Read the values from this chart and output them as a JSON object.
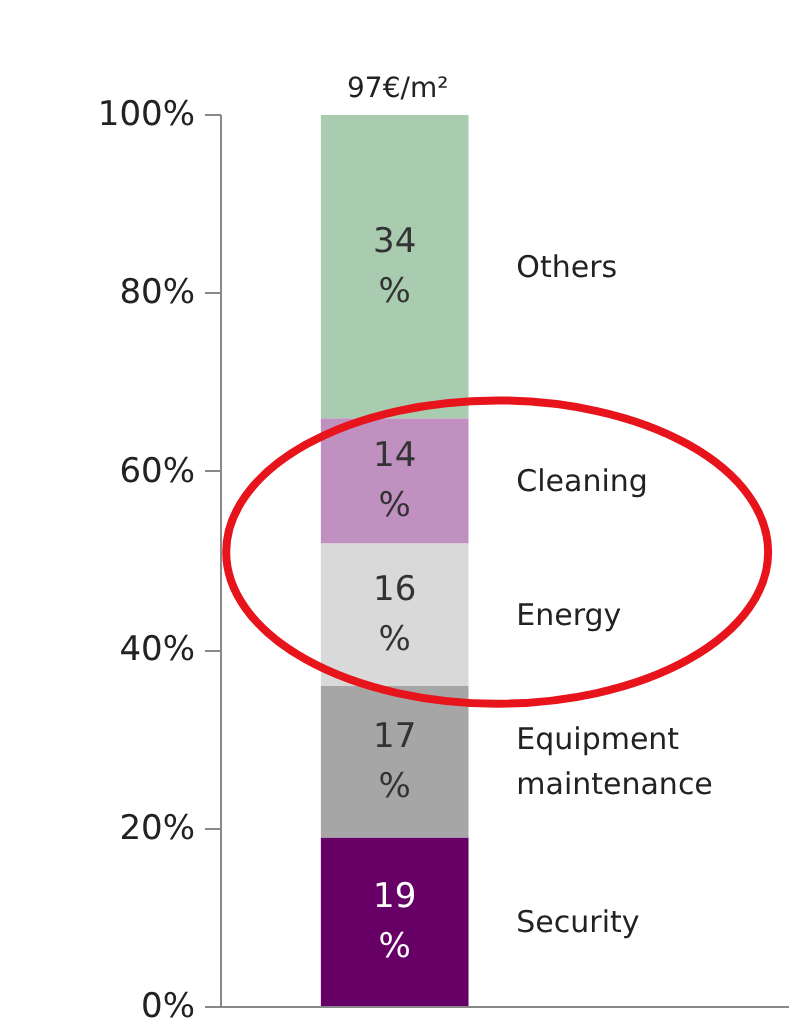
{
  "chart_data": {
    "type": "bar",
    "stacked": true,
    "title": "97€/m²",
    "categories": [
      null
    ],
    "series": [
      {
        "name": "Security",
        "color": "#660066",
        "values": [
          19
        ],
        "value_labels": [
          "19\n%"
        ]
      },
      {
        "name": "Equipment\nmaintenance",
        "color": "#a6a6a6",
        "values": [
          17
        ],
        "value_labels": [
          "17\n%"
        ]
      },
      {
        "name": "Energy",
        "color": "#d9d9d9",
        "values": [
          16
        ],
        "value_labels": [
          "16\n%"
        ]
      },
      {
        "name": "Cleaning",
        "color": "#c090c0",
        "values": [
          14
        ],
        "value_labels": [
          "14\n%"
        ]
      },
      {
        "name": "Others",
        "color": "#a9cbb0",
        "values": [
          34
        ],
        "value_labels": [
          "34\n%"
        ]
      }
    ],
    "ylim": [
      0,
      100
    ],
    "yticks": [
      {
        "value": 0,
        "label": "0%"
      },
      {
        "value": 20,
        "label": "20%"
      },
      {
        "value": 40,
        "label": "40%"
      },
      {
        "value": 60,
        "label": "60%"
      },
      {
        "value": 80,
        "label": "80%"
      },
      {
        "value": 100,
        "label": "100%"
      }
    ],
    "grid": false
  }
}
